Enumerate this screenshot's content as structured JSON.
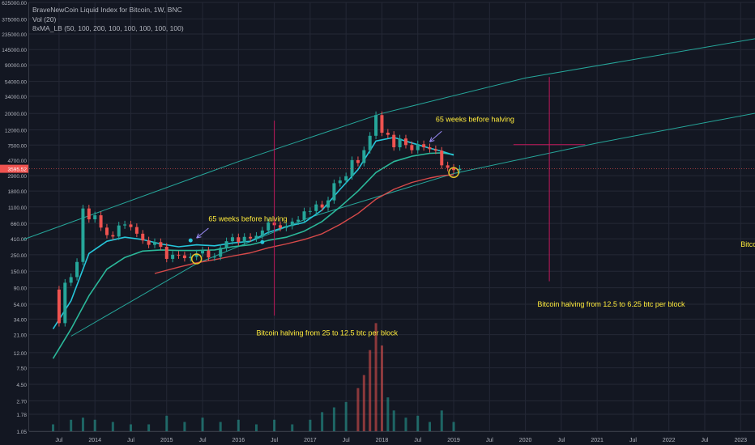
{
  "header": {
    "symbol_line": "BraveNewCoin Liquid Index for Bitcoin, 1W, BNC",
    "volume_line": "Vol (20)",
    "ma_line": "8xMA_LB (50, 100, 200, 100, 100, 100, 100, 100)"
  },
  "colors": {
    "background": "#131722",
    "grid": "#242836",
    "axis_text": "#b2b5be",
    "candle_up": "#26a69a",
    "candle_down": "#ef5350",
    "upper_channel": "#26a69a",
    "ma_fast": "#26c6da",
    "ma_mid": "#2bb89a",
    "ma_slow": "#d84a4a",
    "annotation_text": "#ffeb3b",
    "marker_line": "#c2185b",
    "price_tag": "#ef5350"
  },
  "chart_data": {
    "type": "candlestick",
    "y_scale": "log",
    "ylim": [
      1.05,
      625000
    ],
    "y_ticks": [
      "625000.00",
      "375000.00",
      "235000.00",
      "145000.00",
      "90000.00",
      "54000.00",
      "34000.00",
      "20000.00",
      "12000.00",
      "7500.00",
      "4700.00",
      "2900.00",
      "1800.00",
      "1100.00",
      "660.00",
      "410.00",
      "250.00",
      "150.00",
      "90.00",
      "54.00",
      "34.00",
      "21.00",
      "12.00",
      "7.50",
      "4.50",
      "2.70",
      "1.78",
      "1.05"
    ],
    "x_ticks": [
      "Jul",
      "2014",
      "Jul",
      "2015",
      "Jul",
      "2016",
      "Jul",
      "2017",
      "Jul",
      "2018",
      "Jul",
      "2019",
      "Jul",
      "2020",
      "Jul",
      "2021",
      "Jul",
      "2022",
      "Jul",
      "2023"
    ],
    "last_price": "3595.52",
    "price_series": [
      [
        "2013-06",
        85
      ],
      [
        "2013-07",
        30
      ],
      [
        "2013-08",
        105
      ],
      [
        "2013-09",
        125
      ],
      [
        "2013-10",
        200
      ],
      [
        "2013-11",
        1050
      ],
      [
        "2013-12",
        750
      ],
      [
        "2014-01",
        850
      ],
      [
        "2014-02",
        580
      ],
      [
        "2014-03",
        460
      ],
      [
        "2014-04",
        440
      ],
      [
        "2014-05",
        620
      ],
      [
        "2014-06",
        640
      ],
      [
        "2014-07",
        590
      ],
      [
        "2014-08",
        480
      ],
      [
        "2014-09",
        390
      ],
      [
        "2014-10",
        340
      ],
      [
        "2014-11",
        370
      ],
      [
        "2014-12",
        320
      ],
      [
        "2015-01",
        220
      ],
      [
        "2015-02",
        250
      ],
      [
        "2015-03",
        245
      ],
      [
        "2015-04",
        225
      ],
      [
        "2015-05",
        235
      ],
      [
        "2015-06",
        260
      ],
      [
        "2015-07",
        285
      ],
      [
        "2015-08",
        230
      ],
      [
        "2015-09",
        235
      ],
      [
        "2015-10",
        310
      ],
      [
        "2015-11",
        380
      ],
      [
        "2015-12",
        430
      ],
      [
        "2016-01",
        370
      ],
      [
        "2016-02",
        435
      ],
      [
        "2016-03",
        415
      ],
      [
        "2016-04",
        450
      ],
      [
        "2016-05",
        530
      ],
      [
        "2016-06",
        680
      ],
      [
        "2016-07",
        625
      ],
      [
        "2016-08",
        575
      ],
      [
        "2016-09",
        610
      ],
      [
        "2016-10",
        700
      ],
      [
        "2016-11",
        740
      ],
      [
        "2016-12",
        960
      ],
      [
        "2017-01",
        970
      ],
      [
        "2017-02",
        1190
      ],
      [
        "2017-03",
        1080
      ],
      [
        "2017-04",
        1350
      ],
      [
        "2017-05",
        2300
      ],
      [
        "2017-06",
        2500
      ],
      [
        "2017-07",
        2850
      ],
      [
        "2017-08",
        4700
      ],
      [
        "2017-09",
        4300
      ],
      [
        "2017-10",
        6400
      ],
      [
        "2017-11",
        10000
      ],
      [
        "2017-12",
        19000
      ],
      [
        "2018-01",
        11000
      ],
      [
        "2018-02",
        10300
      ],
      [
        "2018-03",
        7000
      ],
      [
        "2018-04",
        9200
      ],
      [
        "2018-05",
        7500
      ],
      [
        "2018-06",
        6400
      ],
      [
        "2018-07",
        7700
      ],
      [
        "2018-08",
        7000
      ],
      [
        "2018-09",
        6600
      ],
      [
        "2018-10",
        6300
      ],
      [
        "2018-11",
        4000
      ],
      [
        "2018-12",
        3700
      ],
      [
        "2019-01",
        3450
      ],
      [
        "2019-02",
        3600
      ]
    ],
    "volume_series": [
      [
        "2013-06",
        1.3
      ],
      [
        "2013-09",
        1.5
      ],
      [
        "2013-11",
        1.6
      ],
      [
        "2014-01",
        1.5
      ],
      [
        "2014-04",
        1.4
      ],
      [
        "2014-07",
        1.3
      ],
      [
        "2014-10",
        1.3
      ],
      [
        "2015-01",
        1.7
      ],
      [
        "2015-04",
        1.4
      ],
      [
        "2015-07",
        1.6
      ],
      [
        "2015-10",
        1.4
      ],
      [
        "2016-01",
        1.5
      ],
      [
        "2016-04",
        1.3
      ],
      [
        "2016-07",
        1.5
      ],
      [
        "2016-10",
        1.3
      ],
      [
        "2017-01",
        1.5
      ],
      [
        "2017-03",
        1.9
      ],
      [
        "2017-05",
        2.2
      ],
      [
        "2017-07",
        2.6
      ],
      [
        "2017-09",
        4.0
      ],
      [
        "2017-10",
        6.0
      ],
      [
        "2017-11",
        13.0
      ],
      [
        "2017-12",
        30.0
      ],
      [
        "2018-01",
        15.0
      ],
      [
        "2018-02",
        3.0
      ],
      [
        "2018-03",
        2.0
      ],
      [
        "2018-05",
        1.6
      ],
      [
        "2018-07",
        1.7
      ],
      [
        "2018-09",
        1.4
      ],
      [
        "2018-11",
        2.0
      ],
      [
        "2019-01",
        1.4
      ]
    ],
    "ma_fast": [
      [
        "2013-06",
        25
      ],
      [
        "2013-09",
        60
      ],
      [
        "2013-12",
        260
      ],
      [
        "2014-03",
        380
      ],
      [
        "2014-06",
        430
      ],
      [
        "2014-09",
        400
      ],
      [
        "2014-12",
        350
      ],
      [
        "2015-03",
        320
      ],
      [
        "2015-06",
        340
      ],
      [
        "2015-09",
        330
      ],
      [
        "2015-12",
        360
      ],
      [
        "2016-03",
        380
      ],
      [
        "2016-06",
        500
      ],
      [
        "2016-09",
        600
      ],
      [
        "2016-12",
        680
      ],
      [
        "2017-03",
        1000
      ],
      [
        "2017-06",
        1900
      ],
      [
        "2017-09",
        3500
      ],
      [
        "2017-12",
        8500
      ],
      [
        "2018-03",
        9500
      ],
      [
        "2018-06",
        8000
      ],
      [
        "2018-09",
        6800
      ],
      [
        "2018-11",
        6200
      ],
      [
        "2019-01",
        5500
      ]
    ],
    "ma_mid": [
      [
        "2013-06",
        10
      ],
      [
        "2013-09",
        25
      ],
      [
        "2013-12",
        70
      ],
      [
        "2014-03",
        160
      ],
      [
        "2014-06",
        230
      ],
      [
        "2014-09",
        280
      ],
      [
        "2014-12",
        290
      ],
      [
        "2015-03",
        285
      ],
      [
        "2015-06",
        285
      ],
      [
        "2015-09",
        290
      ],
      [
        "2015-12",
        320
      ],
      [
        "2016-03",
        340
      ],
      [
        "2016-06",
        390
      ],
      [
        "2016-09",
        430
      ],
      [
        "2016-12",
        520
      ],
      [
        "2017-03",
        700
      ],
      [
        "2017-06",
        1100
      ],
      [
        "2017-09",
        1800
      ],
      [
        "2017-12",
        3200
      ],
      [
        "2018-03",
        4500
      ],
      [
        "2018-06",
        5300
      ],
      [
        "2018-09",
        5800
      ],
      [
        "2018-11",
        5900
      ],
      [
        "2019-01",
        5600
      ]
    ],
    "ma_slow": [
      [
        "2014-11",
        140
      ],
      [
        "2015-03",
        170
      ],
      [
        "2015-06",
        195
      ],
      [
        "2015-09",
        215
      ],
      [
        "2015-12",
        240
      ],
      [
        "2016-03",
        265
      ],
      [
        "2016-06",
        310
      ],
      [
        "2016-09",
        350
      ],
      [
        "2016-12",
        400
      ],
      [
        "2017-03",
        480
      ],
      [
        "2017-06",
        640
      ],
      [
        "2017-09",
        900
      ],
      [
        "2017-12",
        1400
      ],
      [
        "2018-03",
        1900
      ],
      [
        "2018-06",
        2350
      ],
      [
        "2018-09",
        2700
      ],
      [
        "2018-11",
        2900
      ],
      [
        "2019-01",
        3000
      ]
    ],
    "channel_upper": [
      [
        "2013-01",
        400
      ],
      [
        "2016-01",
        4500
      ],
      [
        "2018-01",
        20000
      ],
      [
        "2020-01",
        60000
      ],
      [
        "2023-06",
        220000
      ]
    ],
    "channel_lower": [
      [
        "2013-09",
        20
      ],
      [
        "2015-06",
        190
      ],
      [
        "2017-01",
        800
      ],
      [
        "2019-01",
        3100
      ],
      [
        "2021-01",
        8000
      ],
      [
        "2023-06",
        22000
      ]
    ],
    "halving_lines": [
      [
        "2016-07",
        16000,
        38
      ]
    ],
    "projected_halving": {
      "date": "2020-05",
      "y_top": 62000,
      "y_bottom": 110
    },
    "crosshair": {
      "x_from": "2019-11",
      "x_to": "2020-11",
      "y": 7600
    },
    "markers": [
      {
        "date": "2015-05",
        "value": 390,
        "kind": "dot"
      },
      {
        "date": "2016-05",
        "value": 370,
        "kind": "dot"
      },
      {
        "date": "2015-06",
        "value": 220,
        "kind": "circle"
      },
      {
        "date": "2019-01",
        "value": 3200,
        "kind": "circle"
      }
    ],
    "annotations": [
      {
        "id": "note-65-weeks-1",
        "text": "65 weeks before halving",
        "date": "2015-08",
        "value": 710
      },
      {
        "id": "note-65-weeks-2",
        "text": "65 weeks before halving",
        "date": "2018-10",
        "value": 15500
      },
      {
        "id": "note-halving-2016",
        "text": "Bitcoin halving from 25 to 12.5 btc per block",
        "date": "2016-04",
        "value": 20.5
      },
      {
        "id": "note-halving-2020",
        "text": "Bitcoin halving from 12.5 to 6.25 btc per block",
        "date": "2020-03",
        "value": 50
      },
      {
        "id": "note-halving-2024",
        "text": "Bitcoin halving from",
        "date": "2023-01",
        "value": 320
      }
    ],
    "arrows": [
      {
        "from": [
          "2015-08",
          570
        ],
        "to": [
          "2015-06",
          420
        ]
      },
      {
        "from": [
          "2018-11",
          11500
        ],
        "to": [
          "2018-09",
          8300
        ]
      }
    ]
  }
}
